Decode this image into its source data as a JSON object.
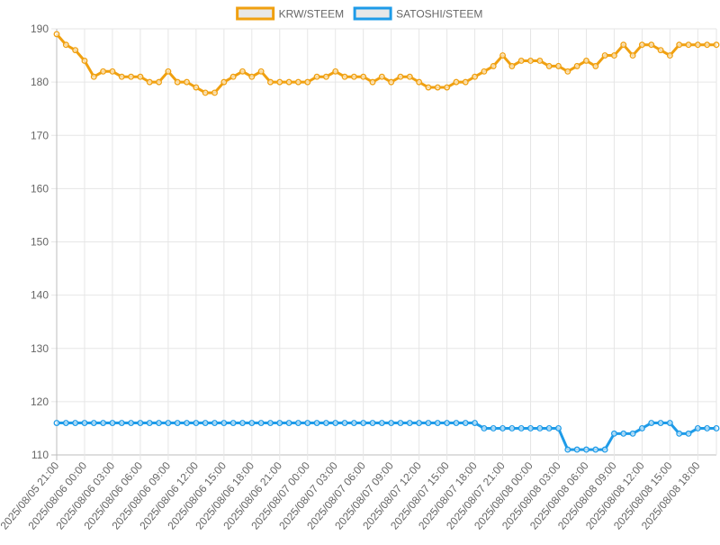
{
  "chart_data": {
    "type": "line",
    "title": "",
    "xlabel": "",
    "ylabel": "",
    "ylim": [
      110,
      190
    ],
    "yticks": [
      110,
      120,
      130,
      140,
      150,
      160,
      170,
      180,
      190
    ],
    "grid": true,
    "legend_position": "top-center",
    "x_tick_labels": [
      "2025/08/05 21:00",
      "2025/08/06 00:00",
      "2025/08/06 03:00",
      "2025/08/06 06:00",
      "2025/08/06 09:00",
      "2025/08/06 12:00",
      "2025/08/06 15:00",
      "2025/08/06 18:00",
      "2025/08/06 21:00",
      "2025/08/07 00:00",
      "2025/08/07 03:00",
      "2025/08/07 06:00",
      "2025/08/07 09:00",
      "2025/08/07 12:00",
      "2025/08/07 15:00",
      "2025/08/07 18:00",
      "2025/08/07 21:00",
      "2025/08/08 00:00",
      "2025/08/08 03:00",
      "2025/08/08 06:00",
      "2025/08/08 09:00",
      "2025/08/08 12:00",
      "2025/08/08 15:00",
      "2025/08/08 18:00"
    ],
    "series": [
      {
        "name": "KRW/STEEM",
        "color": "#f0a010",
        "values": [
          189,
          187,
          186,
          184,
          181,
          182,
          182,
          181,
          181,
          181,
          180,
          180,
          182,
          180,
          180,
          179,
          178,
          178,
          180,
          181,
          182,
          181,
          182,
          180,
          180,
          180,
          180,
          180,
          181,
          181,
          182,
          181,
          181,
          181,
          180,
          181,
          180,
          181,
          181,
          180,
          179,
          179,
          179,
          180,
          180,
          181,
          182,
          183,
          185,
          183,
          184,
          184,
          184,
          183,
          183,
          182,
          183,
          184,
          183,
          185,
          185,
          187,
          185,
          187,
          187,
          186,
          185,
          187,
          187,
          187,
          187,
          187
        ]
      },
      {
        "name": "SATOSHI/STEEM",
        "color": "#1e9be8",
        "values": [
          116,
          116,
          116,
          116,
          116,
          116,
          116,
          116,
          116,
          116,
          116,
          116,
          116,
          116,
          116,
          116,
          116,
          116,
          116,
          116,
          116,
          116,
          116,
          116,
          116,
          116,
          116,
          116,
          116,
          116,
          116,
          116,
          116,
          116,
          116,
          116,
          116,
          116,
          116,
          116,
          116,
          116,
          116,
          116,
          116,
          116,
          115,
          115,
          115,
          115,
          115,
          115,
          115,
          115,
          115,
          111,
          111,
          111,
          111,
          111,
          114,
          114,
          114,
          115,
          116,
          116,
          116,
          114,
          114,
          115,
          115,
          115
        ]
      }
    ]
  }
}
